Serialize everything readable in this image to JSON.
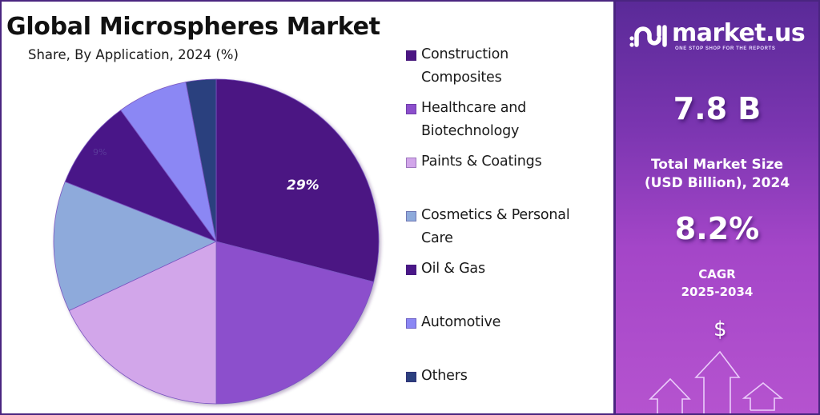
{
  "header": {
    "title": "Global Microspheres Market",
    "subtitle": "Share, By Application, 2024 (%)"
  },
  "chart_data": {
    "type": "pie",
    "title": "Global Microspheres Market",
    "subtitle": "Share, By Application, 2024 (%)",
    "categories": [
      "Construction Composites",
      "Healthcare and Biotechnology",
      "Paints & Coatings",
      "Cosmetics & Personal Care",
      "Oil & Gas",
      "Automotive",
      "Others"
    ],
    "values": [
      29,
      21,
      18,
      13,
      9,
      7,
      3
    ],
    "colors": [
      "#4c1583",
      "#8c4fcc",
      "#d2a6ea",
      "#8eaadb",
      "#4a1788",
      "#8b87f4",
      "#2b3f7e"
    ],
    "data_labels": [
      {
        "category": "Construction Composites",
        "text": "29%"
      },
      {
        "category": "Oil & Gas",
        "text": "9%"
      }
    ],
    "start_angle": "12 o'clock",
    "direction": "clockwise",
    "legend_position": "right"
  },
  "pie": {
    "label_main": "29%",
    "label_faint": "9%"
  },
  "legend": {
    "items": [
      {
        "label_line1": "Construction",
        "label_line2": "Composites",
        "color": "#4c1583"
      },
      {
        "label_line1": "Healthcare and",
        "label_line2": "Biotechnology",
        "color": "#8c4fcc"
      },
      {
        "label_line1": "Paints & Coatings",
        "label_line2": "",
        "color": "#d2a6ea"
      },
      {
        "label_line1": "Cosmetics & Personal",
        "label_line2": "Care",
        "color": "#8eaadb"
      },
      {
        "label_line1": "Oil & Gas",
        "label_line2": "",
        "color": "#4a1788"
      },
      {
        "label_line1": "Automotive",
        "label_line2": "",
        "color": "#8b87f4"
      },
      {
        "label_line1": "Others",
        "label_line2": "",
        "color": "#2b3f7e"
      }
    ]
  },
  "sidebar": {
    "brand": "market.us",
    "tagline": "ONE STOP SHOP FOR THE REPORTS",
    "market_size_value": "7.8 B",
    "market_size_label_line1": "Total Market Size",
    "market_size_label_line2": "(USD Billion), 2024",
    "cagr_value": "8.2%",
    "cagr_label_line1": "CAGR",
    "cagr_label_line2": "2025-2034",
    "graphic_symbol": "$"
  }
}
